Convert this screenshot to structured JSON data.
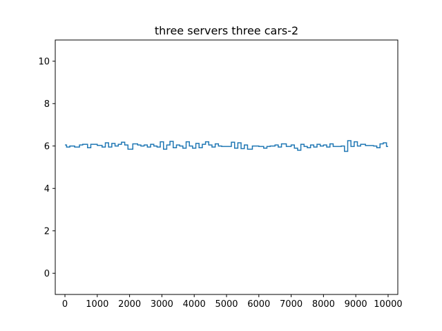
{
  "chart_data": {
    "type": "line",
    "title": "three servers three cars-2",
    "xlabel": "",
    "ylabel": "",
    "xlim": [
      -300,
      10300
    ],
    "ylim": [
      -1,
      11
    ],
    "x_ticks": [
      0,
      1000,
      2000,
      3000,
      4000,
      5000,
      6000,
      7000,
      8000,
      9000,
      10000
    ],
    "x_tick_labels": [
      "0",
      "1000",
      "2000",
      "3000",
      "4000",
      "5000",
      "6000",
      "7000",
      "8000",
      "9000",
      "10000"
    ],
    "y_ticks": [
      0,
      2,
      4,
      6,
      8,
      10
    ],
    "y_tick_labels": [
      "0",
      "2",
      "4",
      "6",
      "8",
      "10"
    ],
    "grid": false,
    "step": true,
    "series": [
      {
        "color": "#1f77b4",
        "x": [
          0,
          50,
          150,
          300,
          450,
          550,
          700,
          800,
          1000,
          1150,
          1250,
          1350,
          1450,
          1550,
          1650,
          1750,
          1850,
          1950,
          2100,
          2250,
          2350,
          2450,
          2550,
          2650,
          2750,
          2850,
          2950,
          3050,
          3150,
          3250,
          3350,
          3450,
          3550,
          3650,
          3750,
          3850,
          3950,
          4050,
          4150,
          4250,
          4350,
          4450,
          4550,
          4650,
          4750,
          4850,
          5000,
          5150,
          5250,
          5350,
          5450,
          5550,
          5650,
          5800,
          6000,
          6150,
          6250,
          6350,
          6500,
          6600,
          6700,
          6850,
          7000,
          7100,
          7200,
          7300,
          7400,
          7500,
          7600,
          7700,
          7800,
          7900,
          8000,
          8100,
          8200,
          8300,
          8450,
          8550,
          8650,
          8750,
          8850,
          8950,
          9050,
          9150,
          9300,
          9450,
          9550,
          9650,
          9750,
          9850,
          9950,
          10000
        ],
        "y": [
          6.05,
          5.95,
          6.0,
          5.95,
          6.05,
          6.08,
          5.92,
          6.08,
          6.03,
          5.95,
          6.15,
          5.95,
          6.12,
          6.0,
          6.08,
          6.18,
          6.05,
          5.85,
          6.1,
          6.05,
          6.0,
          6.05,
          5.95,
          6.08,
          6.0,
          5.95,
          6.2,
          5.85,
          6.05,
          6.22,
          5.92,
          6.05,
          6.0,
          5.9,
          6.2,
          6.0,
          5.9,
          6.12,
          5.92,
          6.08,
          6.2,
          6.05,
          5.95,
          6.1,
          6.0,
          5.98,
          5.98,
          6.18,
          5.9,
          6.15,
          5.88,
          6.05,
          5.85,
          6.0,
          5.98,
          5.9,
          5.98,
          6.0,
          6.05,
          5.95,
          6.1,
          5.98,
          6.05,
          5.9,
          5.8,
          6.08,
          5.98,
          5.92,
          6.05,
          5.95,
          6.08,
          6.0,
          6.05,
          5.95,
          6.1,
          5.98,
          5.98,
          6.0,
          5.75,
          6.25,
          5.98,
          6.2,
          6.0,
          6.08,
          6.02,
          6.02,
          6.0,
          5.92,
          6.1,
          6.15,
          5.98,
          5.98
        ]
      }
    ]
  }
}
